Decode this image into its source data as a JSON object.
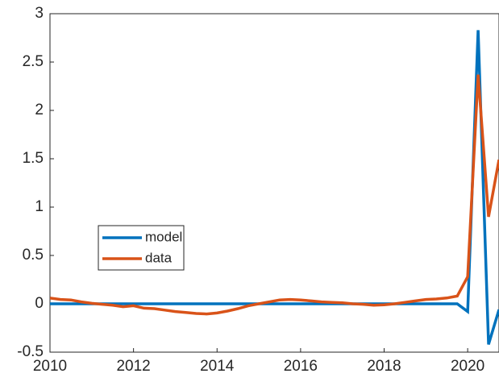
{
  "chart_data": {
    "type": "line",
    "x": [
      2010,
      2010.25,
      2010.5,
      2010.75,
      2011,
      2011.25,
      2011.5,
      2011.75,
      2012,
      2012.25,
      2012.5,
      2012.75,
      2013,
      2013.25,
      2013.5,
      2013.75,
      2014,
      2014.25,
      2014.5,
      2014.75,
      2015,
      2015.25,
      2015.5,
      2015.75,
      2016,
      2016.25,
      2016.5,
      2016.75,
      2017,
      2017.25,
      2017.5,
      2017.75,
      2018,
      2018.25,
      2018.5,
      2018.75,
      2019,
      2019.25,
      2019.5,
      2019.75,
      2020,
      2020.25,
      2020.5,
      2020.75
    ],
    "series": [
      {
        "name": "model",
        "color": "#0072BD",
        "values": [
          0,
          0,
          0,
          0,
          0,
          0,
          0,
          0,
          0,
          0,
          0,
          0,
          0,
          0,
          0,
          0,
          0,
          0,
          0,
          0,
          0,
          0,
          0,
          0,
          0,
          0,
          0,
          0,
          0,
          0,
          0,
          0,
          0,
          0,
          0,
          0,
          0,
          0,
          0,
          0,
          -0.08,
          2.83,
          -0.42,
          -0.06
        ]
      },
      {
        "name": "data",
        "color": "#D95319",
        "values": [
          0.06,
          0.045,
          0.04,
          0.02,
          0.005,
          -0.005,
          -0.015,
          -0.03,
          -0.02,
          -0.045,
          -0.05,
          -0.065,
          -0.08,
          -0.09,
          -0.1,
          -0.105,
          -0.095,
          -0.075,
          -0.05,
          -0.02,
          0.0,
          0.02,
          0.04,
          0.045,
          0.04,
          0.03,
          0.02,
          0.015,
          0.01,
          0.0,
          -0.005,
          -0.015,
          -0.01,
          0.0,
          0.015,
          0.03,
          0.045,
          0.05,
          0.06,
          0.08,
          0.28,
          2.37,
          0.9,
          1.49
        ]
      }
    ],
    "xlim": [
      2010,
      2020.75
    ],
    "xticks": [
      2010,
      2012,
      2014,
      2016,
      2018,
      2020
    ],
    "ylim": [
      -0.5,
      3
    ],
    "yticks": [
      -0.5,
      0,
      0.5,
      1,
      1.5,
      2,
      2.5,
      3
    ],
    "legend": "lower-left"
  }
}
